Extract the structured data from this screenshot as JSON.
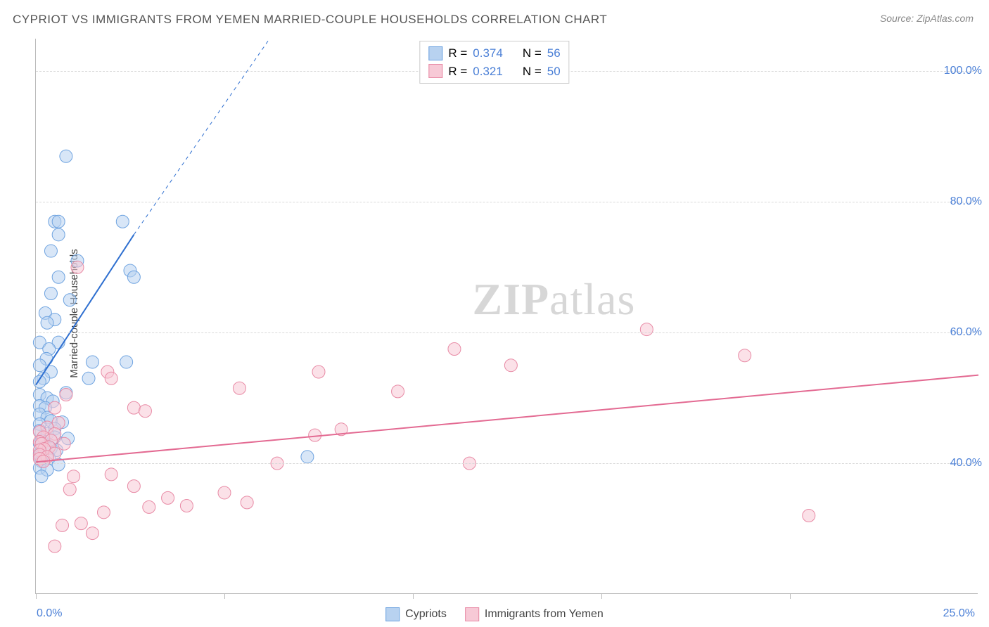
{
  "title": "CYPRIOT VS IMMIGRANTS FROM YEMEN MARRIED-COUPLE HOUSEHOLDS CORRELATION CHART",
  "source_prefix": "Source: ",
  "source": "ZipAtlas.com",
  "watermark_bold": "ZIP",
  "watermark_rest": "atlas",
  "y_axis_title": "Married-couple Households",
  "chart": {
    "type": "scatter",
    "background_color": "#ffffff",
    "grid_color": "#d9d9d9",
    "axis_color": "#bbbbbb",
    "title_color": "#555555",
    "label_color": "#4a7fd6",
    "title_fontsize": 17,
    "label_fontsize": 16,
    "marker_radius": 9,
    "marker_opacity": 0.55,
    "line_width": 2,
    "xlim": [
      0,
      25
    ],
    "ylim": [
      20,
      105
    ],
    "x_ticks": [
      0,
      5,
      10,
      15,
      20
    ],
    "x_tick_labels": {
      "0": "0.0%",
      "25": "25.0%"
    },
    "y_ticks": [
      40,
      60,
      80,
      100
    ],
    "y_tick_labels": [
      "40.0%",
      "60.0%",
      "80.0%",
      "100.0%"
    ],
    "series": [
      {
        "id": "cypriots",
        "name": "Cypriots",
        "color_fill": "#b8d2f0",
        "color_stroke": "#6ea3e0",
        "color_line": "#2e6fd0",
        "r_value": "0.374",
        "n_value": "56",
        "trend": {
          "x1": 0,
          "y1": 52,
          "x2": 2.6,
          "y2": 75
        },
        "trend_ext": {
          "x1": 2.6,
          "y1": 75,
          "x2": 6.2,
          "y2": 105
        },
        "points": [
          [
            0.8,
            87
          ],
          [
            0.5,
            77
          ],
          [
            0.6,
            77
          ],
          [
            2.3,
            77
          ],
          [
            0.6,
            75
          ],
          [
            0.4,
            72.5
          ],
          [
            2.5,
            69.5
          ],
          [
            2.6,
            68.5
          ],
          [
            1.1,
            71
          ],
          [
            0.6,
            68.5
          ],
          [
            0.4,
            66
          ],
          [
            0.9,
            65
          ],
          [
            0.25,
            63
          ],
          [
            0.5,
            62
          ],
          [
            0.3,
            61.5
          ],
          [
            0.6,
            58.5
          ],
          [
            0.1,
            58.5
          ],
          [
            0.35,
            57.5
          ],
          [
            0.28,
            56
          ],
          [
            1.5,
            55.5
          ],
          [
            2.4,
            55.5
          ],
          [
            0.1,
            55
          ],
          [
            0.4,
            54
          ],
          [
            0.2,
            53
          ],
          [
            0.1,
            52.5
          ],
          [
            1.4,
            53
          ],
          [
            0.8,
            50.8
          ],
          [
            0.1,
            50.5
          ],
          [
            0.3,
            50
          ],
          [
            0.45,
            49.5
          ],
          [
            0.1,
            48.8
          ],
          [
            0.25,
            48.5
          ],
          [
            0.1,
            47.5
          ],
          [
            0.3,
            47
          ],
          [
            0.4,
            46.5
          ],
          [
            0.7,
            46.3
          ],
          [
            0.1,
            46
          ],
          [
            0.5,
            45.3
          ],
          [
            0.1,
            45
          ],
          [
            0.3,
            44.5
          ],
          [
            0.5,
            44
          ],
          [
            0.85,
            43.8
          ],
          [
            0.15,
            43.5
          ],
          [
            0.1,
            43
          ],
          [
            0.25,
            42.5
          ],
          [
            0.4,
            42.3
          ],
          [
            0.55,
            42
          ],
          [
            0.1,
            41.5
          ],
          [
            0.1,
            41
          ],
          [
            0.35,
            40.8
          ],
          [
            0.15,
            40.3
          ],
          [
            7.2,
            41
          ],
          [
            0.6,
            39.8
          ],
          [
            0.1,
            39.3
          ],
          [
            0.3,
            39
          ],
          [
            0.15,
            38
          ]
        ]
      },
      {
        "id": "yemen",
        "name": "Immigrants from Yemen",
        "color_fill": "#f7c9d6",
        "color_stroke": "#e88aa5",
        "color_line": "#e36a92",
        "r_value": "0.321",
        "n_value": "50",
        "trend": {
          "x1": 0,
          "y1": 40.2,
          "x2": 25,
          "y2": 53.5
        },
        "points": [
          [
            1.1,
            70
          ],
          [
            16.2,
            60.5
          ],
          [
            18.8,
            56.5
          ],
          [
            11.1,
            57.5
          ],
          [
            12.6,
            55
          ],
          [
            1.9,
            54
          ],
          [
            2.0,
            53
          ],
          [
            7.5,
            54
          ],
          [
            5.4,
            51.5
          ],
          [
            9.6,
            51
          ],
          [
            0.8,
            50.5
          ],
          [
            0.5,
            48.5
          ],
          [
            2.6,
            48.5
          ],
          [
            2.9,
            48
          ],
          [
            8.1,
            45.2
          ],
          [
            7.4,
            44.3
          ],
          [
            0.6,
            46.2
          ],
          [
            0.3,
            45.5
          ],
          [
            0.1,
            44.8
          ],
          [
            0.5,
            44.5
          ],
          [
            0.2,
            44
          ],
          [
            0.4,
            43.5
          ],
          [
            0.1,
            43.3
          ],
          [
            0.15,
            43
          ],
          [
            0.75,
            43
          ],
          [
            0.35,
            42.5
          ],
          [
            0.22,
            42.2
          ],
          [
            0.1,
            42
          ],
          [
            0.5,
            41.5
          ],
          [
            0.1,
            41.3
          ],
          [
            0.3,
            41
          ],
          [
            0.1,
            40.7
          ],
          [
            0.2,
            40.3
          ],
          [
            2.0,
            38.3
          ],
          [
            1.0,
            38
          ],
          [
            6.4,
            40
          ],
          [
            11.5,
            40
          ],
          [
            2.6,
            36.5
          ],
          [
            0.9,
            36
          ],
          [
            5.0,
            35.5
          ],
          [
            3.5,
            34.7
          ],
          [
            5.6,
            34
          ],
          [
            3.0,
            33.3
          ],
          [
            4.0,
            33.5
          ],
          [
            1.8,
            32.5
          ],
          [
            1.2,
            30.8
          ],
          [
            0.7,
            30.5
          ],
          [
            1.5,
            29.3
          ],
          [
            20.5,
            32
          ],
          [
            0.5,
            27.3
          ]
        ]
      }
    ]
  },
  "legend_stats_labels": {
    "r_label": "R =",
    "n_label": "N ="
  }
}
